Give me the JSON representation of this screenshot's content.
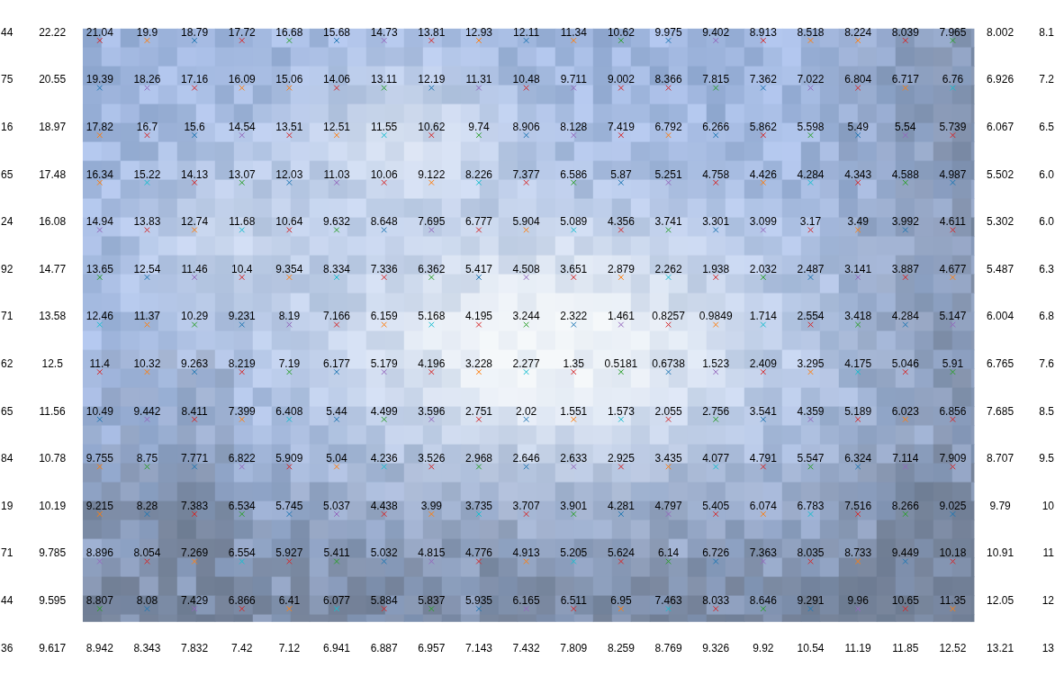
{
  "chart_data": {
    "type": "scatter",
    "marker": "x",
    "grid": false,
    "tick_labels": false,
    "data_labels": true,
    "cells": [
      [
        "44",
        22.22,
        21.04,
        19.9,
        18.79,
        17.72,
        16.68,
        15.68,
        14.73,
        13.81,
        12.93,
        12.11,
        11.34,
        10.62,
        9.975,
        9.402,
        8.913,
        8.518,
        8.224,
        8.039,
        7.965,
        8.002,
        "8.1"
      ],
      [
        "75",
        20.55,
        19.39,
        18.26,
        17.16,
        16.09,
        15.06,
        14.06,
        13.11,
        12.19,
        11.31,
        10.48,
        9.711,
        9.002,
        8.366,
        7.815,
        7.362,
        7.022,
        6.804,
        6.717,
        6.76,
        6.926,
        "7.2"
      ],
      [
        "16",
        18.97,
        17.82,
        16.7,
        15.6,
        14.54,
        13.51,
        12.51,
        11.55,
        10.62,
        9.74,
        8.906,
        8.128,
        7.419,
        6.792,
        6.266,
        5.862,
        5.598,
        5.49,
        5.54,
        5.739,
        6.067,
        "6.5"
      ],
      [
        "65",
        17.48,
        16.34,
        15.22,
        14.13,
        13.07,
        12.03,
        11.03,
        10.06,
        9.122,
        8.226,
        7.377,
        6.586,
        5.87,
        5.251,
        4.758,
        4.426,
        4.284,
        4.343,
        4.588,
        4.987,
        5.502,
        "6.0"
      ],
      [
        "24",
        16.08,
        14.94,
        13.83,
        12.74,
        11.68,
        10.64,
        9.632,
        8.648,
        7.695,
        6.777,
        5.904,
        5.089,
        4.356,
        3.741,
        3.301,
        3.099,
        3.17,
        3.49,
        3.992,
        4.611,
        5.302,
        "6.0"
      ],
      [
        "92",
        14.77,
        13.65,
        12.54,
        11.46,
        10.4,
        9.354,
        8.334,
        7.336,
        6.362,
        5.417,
        4.508,
        3.651,
        2.879,
        2.262,
        1.938,
        2.032,
        2.487,
        3.141,
        3.887,
        4.677,
        5.487,
        "6.3"
      ],
      [
        "71",
        13.58,
        12.46,
        11.37,
        10.29,
        9.231,
        8.19,
        7.166,
        6.159,
        5.168,
        4.195,
        3.244,
        2.322,
        1.461,
        0.8257,
        0.9849,
        1.714,
        2.554,
        3.418,
        4.284,
        5.147,
        6.004,
        "6.8"
      ],
      [
        "62",
        12.5,
        11.4,
        10.32,
        9.263,
        8.219,
        7.19,
        6.177,
        5.179,
        4.196,
        3.228,
        2.277,
        1.35,
        0.5181,
        0.6738,
        1.523,
        2.409,
        3.295,
        4.175,
        5.046,
        5.91,
        6.765,
        "7.6"
      ],
      [
        "65",
        11.56,
        10.49,
        9.442,
        8.411,
        7.399,
        6.408,
        5.44,
        4.499,
        3.596,
        2.751,
        2.02,
        1.551,
        1.573,
        2.055,
        2.756,
        3.541,
        4.359,
        5.189,
        6.023,
        6.856,
        7.685,
        "8.5"
      ],
      [
        "84",
        10.78,
        9.755,
        8.75,
        7.771,
        6.822,
        5.909,
        5.04,
        4.236,
        3.526,
        2.968,
        2.646,
        2.633,
        2.925,
        3.435,
        4.077,
        4.791,
        5.547,
        6.324,
        7.114,
        7.909,
        8.707,
        "9.5"
      ],
      [
        "19",
        10.19,
        9.215,
        8.28,
        7.383,
        6.534,
        5.745,
        5.037,
        4.438,
        3.99,
        3.735,
        3.707,
        3.901,
        4.281,
        4.797,
        5.405,
        6.074,
        6.783,
        7.516,
        8.266,
        9.025,
        9.79,
        "10"
      ],
      [
        "71",
        9.785,
        8.896,
        8.054,
        7.269,
        6.554,
        5.927,
        5.411,
        5.032,
        4.815,
        4.776,
        4.913,
        5.205,
        5.624,
        6.14,
        6.726,
        7.363,
        8.035,
        8.733,
        9.449,
        10.18,
        10.91,
        "11"
      ],
      [
        "44",
        9.595,
        8.807,
        8.08,
        7.429,
        6.866,
        6.41,
        6.077,
        5.884,
        5.837,
        5.935,
        6.165,
        6.511,
        6.95,
        7.463,
        8.033,
        8.646,
        9.291,
        9.96,
        10.65,
        11.35,
        12.05,
        "12"
      ],
      [
        "36",
        9.617,
        8.942,
        8.343,
        7.832,
        7.42,
        7.12,
        6.941,
        6.887,
        6.957,
        7.143,
        7.432,
        7.809,
        8.259,
        8.769,
        9.326,
        9.92,
        10.54,
        11.19,
        11.85,
        12.52,
        13.21,
        "13"
      ]
    ],
    "colors": [
      [
        "#d62728",
        "#ff7f0e",
        "#1f77b4",
        "#d62728",
        "#2ca02c",
        "#1f77b4",
        "#9467bd",
        "#d62728",
        "#ff7f0e",
        "#1f77b4",
        "#ff7f0e",
        "#2ca02c",
        "#1f77b4",
        "#9467bd",
        "#d62728",
        "#ff7f0e",
        "#ff7f0e",
        "#d62728",
        "#2ca02c"
      ],
      [
        "#1f77b4",
        "#9467bd",
        "#d62728",
        "#ff7f0e",
        "#ff7f0e",
        "#d62728",
        "#2ca02c",
        "#1f77b4",
        "#9467bd",
        "#d62728",
        "#9467bd",
        "#d62728",
        "#d62728",
        "#2ca02c",
        "#1f77b4",
        "#9467bd",
        "#d62728",
        "#ff7f0e",
        "#17becf"
      ],
      [
        "#ff7f0e",
        "#d62728",
        "#1f77b4",
        "#9467bd",
        "#d62728",
        "#ff7f0e",
        "#17becf",
        "#d62728",
        "#2ca02c",
        "#1f77b4",
        "#9467bd",
        "#d62728",
        "#ff7f0e",
        "#1f77b4",
        "#d62728",
        "#2ca02c",
        "#1f77b4",
        "#9467bd",
        "#d62728"
      ],
      [
        "#ff7f0e",
        "#17becf",
        "#d62728",
        "#2ca02c",
        "#1f77b4",
        "#9467bd",
        "#d62728",
        "#ff7f0e",
        "#17becf",
        "#d62728",
        "#2ca02c",
        "#1f77b4",
        "#9467bd",
        "#d62728",
        "#ff7f0e",
        "#17becf",
        "#d62728",
        "#2ca02c",
        "#1f77b4"
      ],
      [
        "#9467bd",
        "#d62728",
        "#ff7f0e",
        "#17becf",
        "#d62728",
        "#2ca02c",
        "#1f77b4",
        "#9467bd",
        "#d62728",
        "#ff7f0e",
        "#17becf",
        "#d62728",
        "#2ca02c",
        "#1f77b4",
        "#9467bd",
        "#d62728",
        "#ff7f0e",
        "#1f77b4",
        "#d62728"
      ],
      [
        "#2ca02c",
        "#1f77b4",
        "#9467bd",
        "#d62728",
        "#ff7f0e",
        "#17becf",
        "#d62728",
        "#2ca02c",
        "#1f77b4",
        "#9467bd",
        "#d62728",
        "#ff7f0e",
        "#17becf",
        "#d62728",
        "#2ca02c",
        "#1f77b4",
        "#9467bd",
        "#d62728",
        "#ff7f0e"
      ],
      [
        "#17becf",
        "#ff7f0e",
        "#2ca02c",
        "#1f77b4",
        "#9467bd",
        "#d62728",
        "#ff7f0e",
        "#17becf",
        "#d62728",
        "#2ca02c",
        "#1f77b4",
        "#9467bd",
        "#d62728",
        "#ff7f0e",
        "#17becf",
        "#d62728",
        "#2ca02c",
        "#1f77b4",
        "#9467bd"
      ],
      [
        "#d62728",
        "#ff7f0e",
        "#1f77b4",
        "#d62728",
        "#2ca02c",
        "#1f77b4",
        "#9467bd",
        "#d62728",
        "#ff7f0e",
        "#17becf",
        "#d62728",
        "#2ca02c",
        "#1f77b4",
        "#9467bd",
        "#d62728",
        "#ff7f0e",
        "#17becf",
        "#d62728",
        "#2ca02c"
      ],
      [
        "#1f77b4",
        "#9467bd",
        "#d62728",
        "#ff7f0e",
        "#17becf",
        "#1f77b4",
        "#2ca02c",
        "#9467bd",
        "#d62728",
        "#1f77b4",
        "#ff7f0e",
        "#17becf",
        "#d62728",
        "#2ca02c",
        "#1f77b4",
        "#9467bd",
        "#d62728",
        "#ff7f0e",
        "#d62728"
      ],
      [
        "#ff7f0e",
        "#2ca02c",
        "#1f77b4",
        "#9467bd",
        "#d62728",
        "#ff7f0e",
        "#17becf",
        "#d62728",
        "#2ca02c",
        "#1f77b4",
        "#9467bd",
        "#d62728",
        "#ff7f0e",
        "#17becf",
        "#d62728",
        "#2ca02c",
        "#1f77b4",
        "#9467bd",
        "#d62728"
      ],
      [
        "#ff7f0e",
        "#1f77b4",
        "#d62728",
        "#2ca02c",
        "#1f77b4",
        "#9467bd",
        "#d62728",
        "#ff7f0e",
        "#17becf",
        "#d62728",
        "#2ca02c",
        "#1f77b4",
        "#9467bd",
        "#d62728",
        "#ff7f0e",
        "#17becf",
        "#d62728",
        "#2ca02c",
        "#1f77b4"
      ],
      [
        "#9467bd",
        "#d62728",
        "#ff7f0e",
        "#17becf",
        "#d62728",
        "#2ca02c",
        "#1f77b4",
        "#9467bd",
        "#d62728",
        "#ff7f0e",
        "#17becf",
        "#d62728",
        "#2ca02c",
        "#1f77b4",
        "#9467bd",
        "#d62728",
        "#ff7f0e",
        "#1f77b4",
        "#d62728"
      ],
      [
        "#2ca02c",
        "#1f77b4",
        "#9467bd",
        "#d62728",
        "#ff7f0e",
        "#17becf",
        "#d62728",
        "#2ca02c",
        "#1f77b4",
        "#9467bd",
        "#d62728",
        "#ff7f0e",
        "#17becf",
        "#d62728",
        "#2ca02c",
        "#1f77b4",
        "#9467bd",
        "#d62728",
        "#ff7f0e"
      ]
    ]
  }
}
